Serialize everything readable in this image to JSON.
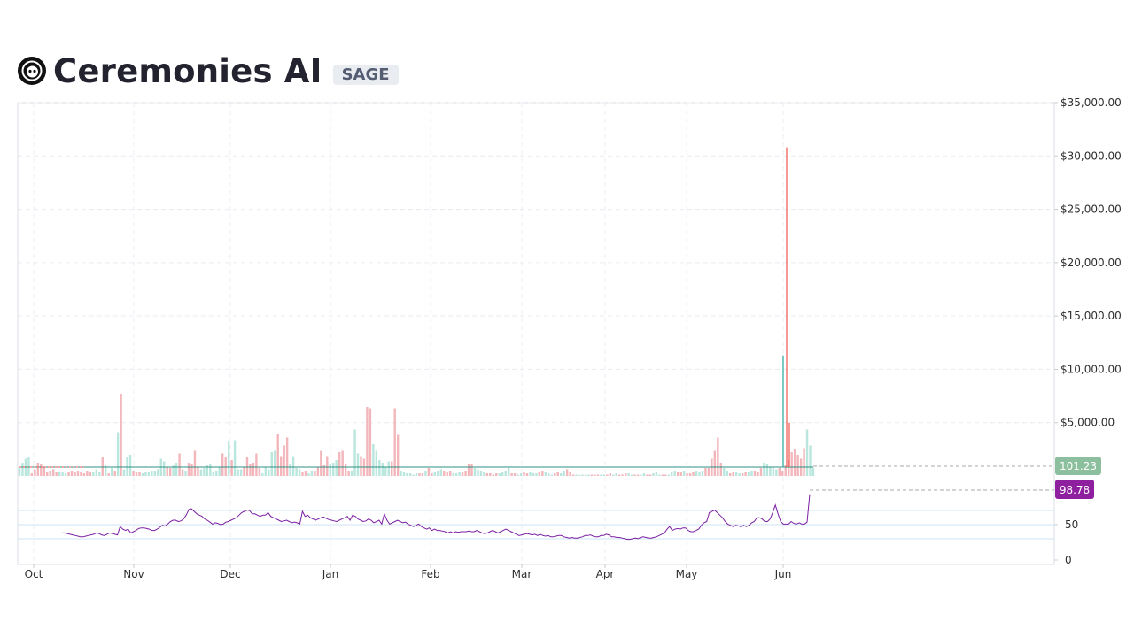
{
  "header": {
    "title": "Ceremonies AI",
    "ticker": "SAGE"
  },
  "colors": {
    "up": "#26a69a",
    "down": "#ef5350",
    "up_vol": "#b9e6dd",
    "down_vol": "#f2b6bb",
    "rsi_line": "#7b1fa2",
    "price_badge": "#8cbf9d",
    "rsi_badge": "#8e1f9e",
    "grid": "#e8ecf2",
    "price_line": "#2e8f80"
  },
  "chart_data": {
    "type": "bar",
    "title": "Ceremonies AI",
    "price_panel": {
      "ylim": [
        0,
        35000
      ],
      "y_ticks": [
        "$35,000.00",
        "$30,000.00",
        "$25,000.00",
        "$20,000.00",
        "$15,000.00",
        "$10,000.00",
        "$5,000.00"
      ],
      "y_tick_values": [
        35000,
        30000,
        25000,
        20000,
        15000,
        10000,
        5000
      ],
      "last_price_label": "101.23",
      "last_price": 101.23,
      "spikes": [
        {
          "date": "Jun 1",
          "value": 11300,
          "direction": "up"
        },
        {
          "date": "Jun 2",
          "value": 30800,
          "direction": "down"
        },
        {
          "date": "Jun 3",
          "value": 5000,
          "direction": "down"
        }
      ]
    },
    "volume_series": {
      "name": "",
      "values": [
        0.6,
        1.0,
        1.3,
        1.4,
        0.2,
        0.5,
        1.0,
        0.9,
        0.7,
        0.3,
        0.4,
        0.5,
        0.3,
        0.3,
        0.3,
        0.2,
        0.3,
        0.4,
        0.3,
        0.4,
        0.3,
        0.2,
        0.4,
        0.3,
        0.3,
        0.5,
        0.3,
        1.4,
        0.8,
        0.2,
        0.6,
        0.4,
        3.3,
        6.2,
        0.5,
        1.4,
        1.6,
        0.4,
        0.3,
        0.3,
        0.2,
        0.3,
        0.3,
        0.4,
        0.4,
        0.5,
        1.3,
        1.1,
        0.7,
        0.6,
        0.8,
        1.0,
        1.7,
        0.5,
        0.4,
        1.0,
        0.9,
        1.9,
        0.7,
        0.5,
        0.6,
        0.8,
        0.9,
        0.3,
        0.4,
        0.7,
        1.7,
        1.4,
        2.6,
        1.2,
        2.7,
        0.5,
        0.5,
        0.7,
        1.4,
        0.9,
        1.0,
        1.7,
        0.6,
        0.2,
        0.7,
        0.5,
        1.8,
        1.9,
        3.2,
        1.5,
        2.3,
        2.9,
        0.9,
        1.5,
        0.6,
        0.5,
        0.3,
        0.4,
        0.2,
        0.4,
        0.4,
        0.7,
        1.9,
        0.8,
        1.5,
        0.9,
        1.0,
        1.2,
        1.8,
        1.9,
        0.9,
        0.4,
        0.4,
        3.5,
        1.7,
        1.5,
        1.3,
        5.2,
        5.1,
        2.4,
        1.9,
        1.2,
        1.0,
        0.7,
        1.1,
        1.1,
        5.1,
        3.1,
        0.4,
        0.3,
        0.2,
        0.2,
        0.1,
        0.2,
        0.2,
        0.2,
        0.4,
        0.6,
        0.2,
        0.3,
        0.4,
        0.5,
        0.4,
        0.3,
        0.4,
        0.2,
        0.2,
        0.3,
        0.3,
        0.4,
        0.9,
        0.9,
        0.6,
        0.5,
        0.4,
        0.3,
        0.2,
        0.2,
        0.1,
        0.2,
        0.2,
        0.3,
        0.4,
        0.6,
        0.2,
        0.2,
        0.1,
        0.2,
        0.3,
        0.2,
        0.3,
        0.2,
        0.2,
        0.3,
        0.4,
        0.3,
        0.2,
        0.1,
        0.2,
        0.3,
        0.2,
        0.4,
        0.5,
        0.3,
        0.1,
        0.1,
        0.1,
        0.1,
        0.1,
        0.1,
        0.1,
        0.1,
        0.1,
        0.1,
        0.1,
        0.1,
        0.2,
        0.1,
        0.2,
        0.1,
        0.1,
        0.2,
        0.2,
        0.1,
        0.1,
        0.1,
        0.1,
        0.2,
        0.1,
        0.1,
        0.2,
        0.3,
        0.1,
        0.1,
        0.1,
        0.1,
        0.3,
        0.4,
        0.3,
        0.3,
        0.4,
        0.2,
        0.2,
        0.3,
        0.4,
        0.3,
        0.4,
        0.6,
        0.6,
        1.3,
        1.9,
        2.9,
        1.0,
        0.6,
        0.4,
        0.2,
        0.3,
        0.3,
        0.2,
        0.2,
        0.3,
        0.3,
        0.4,
        0.4,
        0.3,
        0.6,
        1.0,
        0.9,
        0.7,
        0.6,
        0.5,
        0.6,
        0.4,
        0.8,
        1.2,
        1.8,
        2.0,
        1.6,
        1.3,
        2.1,
        3.5,
        2.3,
        0.6
      ],
      "directions": [
        "u",
        "u",
        "u",
        "u",
        "d",
        "d",
        "d",
        "d",
        "d",
        "d",
        "d",
        "d",
        "d",
        "u",
        "u",
        "u",
        "d",
        "d",
        "d",
        "d",
        "d",
        "d",
        "d",
        "d",
        "u",
        "u",
        "u",
        "d",
        "u",
        "d",
        "u",
        "d",
        "u",
        "d",
        "u",
        "u",
        "u",
        "d",
        "d",
        "d",
        "u",
        "u",
        "u",
        "u",
        "u",
        "u",
        "u",
        "u",
        "d",
        "d",
        "u",
        "u",
        "d",
        "d",
        "u",
        "d",
        "d",
        "d",
        "d",
        "u",
        "u",
        "u",
        "u",
        "u",
        "u",
        "u",
        "d",
        "d",
        "u",
        "d",
        "u",
        "u",
        "u",
        "d",
        "d",
        "d",
        "d",
        "d",
        "d",
        "u",
        "u",
        "u",
        "u",
        "u",
        "d",
        "d",
        "d",
        "d",
        "u",
        "u",
        "u",
        "u",
        "d",
        "d",
        "u",
        "u",
        "d",
        "d",
        "d",
        "d",
        "d",
        "u",
        "u",
        "u",
        "d",
        "d",
        "d",
        "d",
        "u",
        "u",
        "u",
        "d",
        "d",
        "d",
        "d",
        "u",
        "u",
        "u",
        "u",
        "u",
        "u",
        "d",
        "d",
        "d",
        "u",
        "u",
        "u",
        "u",
        "u",
        "u",
        "d",
        "d",
        "u",
        "d",
        "d",
        "u",
        "u",
        "u",
        "d",
        "d",
        "d",
        "u",
        "u",
        "u",
        "d",
        "d",
        "d",
        "d",
        "u",
        "u",
        "u",
        "u",
        "d",
        "d",
        "d",
        "d",
        "u",
        "u",
        "u",
        "u",
        "d",
        "d",
        "u",
        "u",
        "d",
        "d",
        "u",
        "u",
        "u",
        "d",
        "d",
        "u",
        "u",
        "u",
        "d",
        "d",
        "u",
        "u",
        "d",
        "d",
        "d",
        "u",
        "u",
        "u",
        "u",
        "u",
        "d",
        "d",
        "d",
        "u",
        "u",
        "d",
        "d",
        "u",
        "u",
        "d",
        "d",
        "d",
        "u",
        "u",
        "d",
        "d",
        "u",
        "u",
        "d",
        "d",
        "u",
        "u",
        "u",
        "d",
        "d",
        "u",
        "u",
        "u",
        "d",
        "d",
        "u",
        "d",
        "d",
        "d",
        "u",
        "u",
        "u",
        "d",
        "d",
        "d",
        "d",
        "d",
        "d",
        "u",
        "u",
        "d",
        "d",
        "u",
        "u",
        "d",
        "d",
        "u",
        "u",
        "d",
        "d",
        "d",
        "u",
        "u",
        "u",
        "u",
        "u",
        "d",
        "d",
        "d",
        "d",
        "d",
        "d",
        "d",
        "d",
        "d",
        "u",
        "u",
        "u",
        "u",
        "u",
        "d",
        "d",
        "u",
        "u",
        "u",
        "u"
      ]
    },
    "rsi_panel": {
      "ylim": [
        0,
        100
      ],
      "y_ticks": [
        "50",
        "0"
      ],
      "y_tick_values": [
        50,
        0
      ],
      "bands": [
        30,
        50,
        70
      ],
      "last_value_label": "98.78",
      "last_value": 98.78,
      "values": [
        38,
        38,
        37,
        36,
        35,
        34,
        33,
        32,
        32,
        33,
        34,
        35,
        36,
        38,
        37,
        35,
        34,
        36,
        38,
        37,
        36,
        35,
        48,
        44,
        42,
        44,
        38,
        40,
        42,
        45,
        46,
        46,
        45,
        44,
        42,
        42,
        44,
        47,
        50,
        49,
        52,
        56,
        58,
        58,
        56,
        57,
        60,
        66,
        75,
        76,
        72,
        68,
        66,
        64,
        60,
        58,
        55,
        52,
        54,
        53,
        51,
        52,
        55,
        56,
        58,
        60,
        62,
        66,
        70,
        72,
        74,
        73,
        68,
        68,
        66,
        64,
        66,
        66,
        70,
        64,
        62,
        60,
        58,
        56,
        57,
        58,
        56,
        54,
        55,
        54,
        52,
        72,
        64,
        66,
        62,
        60,
        58,
        60,
        62,
        63,
        61,
        59,
        58,
        57,
        56,
        58,
        60,
        62,
        64,
        58,
        66,
        64,
        60,
        58,
        56,
        57,
        60,
        58,
        54,
        56,
        58,
        52,
        68,
        58,
        52,
        54,
        56,
        58,
        56,
        54,
        55,
        52,
        50,
        48,
        50,
        52,
        48,
        46,
        44,
        46,
        42,
        44,
        42,
        42,
        41,
        40,
        38,
        40,
        38,
        40,
        39,
        40,
        40,
        40,
        41,
        40,
        40,
        42,
        40,
        38,
        37,
        38,
        40,
        42,
        40,
        38,
        40,
        42,
        44,
        42,
        40,
        38,
        36,
        34,
        35,
        36,
        37,
        36,
        35,
        36,
        34,
        36,
        34,
        33,
        34,
        32,
        32,
        33,
        34,
        34,
        32,
        31,
        30,
        31,
        30,
        30,
        31,
        32,
        34,
        34,
        35,
        33,
        32,
        32,
        34,
        34,
        36,
        35,
        32,
        32,
        31,
        31,
        30,
        29,
        28,
        28,
        29,
        30,
        29,
        31,
        32,
        31,
        30,
        30,
        31,
        32,
        34,
        36,
        38,
        44,
        48,
        42,
        44,
        45,
        44,
        46,
        46,
        42,
        40,
        40,
        42,
        44,
        50,
        54,
        56,
        70,
        72,
        74,
        70,
        66,
        62,
        56,
        52,
        50,
        48,
        50,
        49,
        48,
        50,
        48,
        50,
        54,
        56,
        62,
        62,
        60,
        56,
        56,
        60,
        70,
        82,
        68,
        56,
        52,
        52,
        52,
        56,
        53,
        52,
        54,
        52,
        52,
        55,
        98.78
      ]
    },
    "x_ticks": [
      "Oct",
      "Nov",
      "Dec",
      "Jan",
      "Feb",
      "Mar",
      "Apr",
      "May",
      "Jun"
    ]
  }
}
